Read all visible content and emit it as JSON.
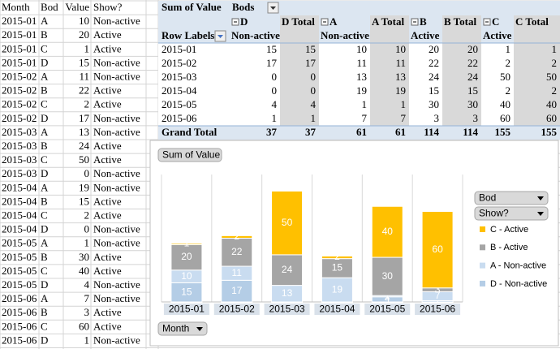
{
  "sheet": {
    "headers": [
      "Month",
      "Bod",
      "Value",
      "Show?"
    ],
    "rows": [
      [
        "2015-01",
        "A",
        10,
        "Non-active"
      ],
      [
        "2015-01",
        "B",
        20,
        "Active"
      ],
      [
        "2015-01",
        "C",
        1,
        "Active"
      ],
      [
        "2015-01",
        "D",
        15,
        "Non-active"
      ],
      [
        "2015-02",
        "A",
        11,
        "Non-active"
      ],
      [
        "2015-02",
        "B",
        22,
        "Active"
      ],
      [
        "2015-02",
        "C",
        2,
        "Active"
      ],
      [
        "2015-02",
        "D",
        17,
        "Non-active"
      ],
      [
        "2015-03",
        "A",
        13,
        "Non-active"
      ],
      [
        "2015-03",
        "B",
        24,
        "Active"
      ],
      [
        "2015-03",
        "C",
        50,
        "Active"
      ],
      [
        "2015-03",
        "D",
        0,
        "Non-active"
      ],
      [
        "2015-04",
        "A",
        19,
        "Non-active"
      ],
      [
        "2015-04",
        "B",
        15,
        "Active"
      ],
      [
        "2015-04",
        "C",
        2,
        "Active"
      ],
      [
        "2015-04",
        "D",
        0,
        "Non-active"
      ],
      [
        "2015-05",
        "A",
        1,
        "Non-active"
      ],
      [
        "2015-05",
        "B",
        30,
        "Active"
      ],
      [
        "2015-05",
        "C",
        40,
        "Active"
      ],
      [
        "2015-05",
        "D",
        4,
        "Non-active"
      ],
      [
        "2015-06",
        "A",
        7,
        "Non-active"
      ],
      [
        "2015-06",
        "B",
        3,
        "Active"
      ],
      [
        "2015-06",
        "C",
        60,
        "Active"
      ],
      [
        "2015-06",
        "D",
        1,
        "Non-active"
      ]
    ]
  },
  "pivot": {
    "corner": "Sum of Value",
    "column_field": "Bods",
    "row_field": "Row Labels",
    "column_groups": [
      "D",
      "D Total",
      "A",
      "A Total",
      "B",
      "B Total",
      "C",
      "C Total"
    ],
    "column_subgroups": [
      "Non-active",
      "Non-active",
      "Active",
      "Active"
    ],
    "rows": [
      {
        "label": "2015-01",
        "values": [
          15,
          15,
          10,
          10,
          20,
          20,
          1,
          1
        ]
      },
      {
        "label": "2015-02",
        "values": [
          17,
          17,
          11,
          11,
          22,
          22,
          2,
          2
        ]
      },
      {
        "label": "2015-03",
        "values": [
          0,
          0,
          13,
          13,
          24,
          24,
          50,
          50
        ]
      },
      {
        "label": "2015-04",
        "values": [
          0,
          0,
          19,
          19,
          15,
          15,
          2,
          2
        ]
      },
      {
        "label": "2015-05",
        "values": [
          4,
          4,
          1,
          1,
          30,
          30,
          40,
          40
        ]
      },
      {
        "label": "2015-06",
        "values": [
          1,
          1,
          7,
          7,
          3,
          3,
          60,
          60
        ]
      }
    ],
    "grand_total": {
      "label": "Grand Total",
      "values": [
        37,
        37,
        61,
        61,
        114,
        114,
        155,
        155
      ]
    }
  },
  "chart_data": {
    "type": "bar",
    "stacked": true,
    "categories": [
      "2015-01",
      "2015-02",
      "2015-03",
      "2015-04",
      "2015-05",
      "2015-06"
    ],
    "series": [
      {
        "name": "D - Non-active",
        "color": "#b4cde6",
        "values": [
          15,
          17,
          0,
          0,
          4,
          1
        ]
      },
      {
        "name": "A - Non-active",
        "color": "#c9dcf0",
        "values": [
          10,
          11,
          13,
          19,
          1,
          7
        ]
      },
      {
        "name": "B - Active",
        "color": "#a5a5a5",
        "values": [
          20,
          22,
          24,
          15,
          30,
          3
        ]
      },
      {
        "name": "C - Active",
        "color": "#ffc000",
        "values": [
          1,
          2,
          50,
          2,
          40,
          60
        ]
      }
    ],
    "ylim": [
      0,
      100
    ],
    "value_field_button": "Sum of Value",
    "legend_field_buttons": [
      "Bod",
      "Show?"
    ],
    "axis_field_button": "Month"
  }
}
